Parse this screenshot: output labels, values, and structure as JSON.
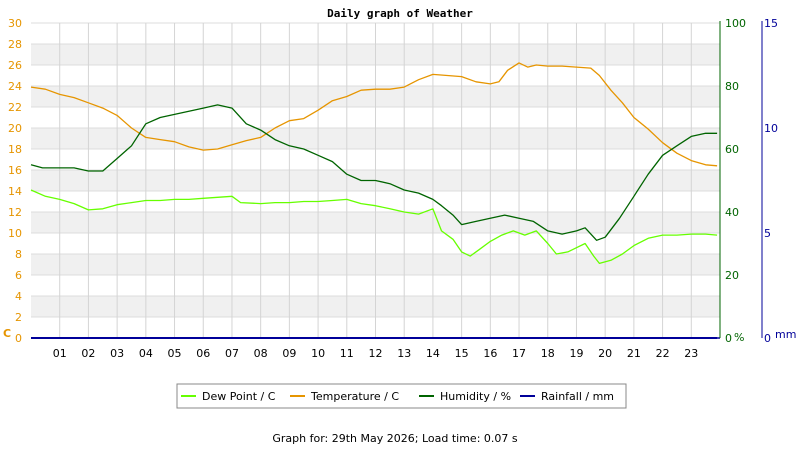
{
  "chart_data": {
    "type": "line",
    "title": "Daily graph of Weather",
    "x_ticks": [
      "01",
      "02",
      "03",
      "04",
      "05",
      "06",
      "07",
      "08",
      "09",
      "10",
      "11",
      "12",
      "13",
      "14",
      "15",
      "16",
      "17",
      "18",
      "19",
      "20",
      "21",
      "22",
      "23"
    ],
    "x_range": [
      0,
      24
    ],
    "axes": {
      "left": {
        "unit": "C",
        "range": [
          0,
          30
        ],
        "ticks": [
          0,
          2,
          4,
          6,
          8,
          10,
          12,
          14,
          16,
          18,
          20,
          22,
          24,
          26,
          28,
          30
        ],
        "color": "#e69500"
      },
      "humidity": {
        "unit": "%",
        "range": [
          0,
          100
        ],
        "ticks": [
          0,
          20,
          40,
          60,
          80,
          100
        ],
        "color": "#006400"
      },
      "rain": {
        "unit": "mm",
        "range": [
          0,
          15
        ],
        "ticks": [
          0,
          5,
          10,
          15
        ],
        "color": "#000099"
      }
    },
    "grid": true,
    "legend_position": "bottom",
    "series": [
      {
        "name": "Dew Point / C",
        "axis": "left",
        "color": "#66ff00",
        "points": [
          [
            0,
            14.1
          ],
          [
            0.5,
            13.5
          ],
          [
            1,
            13.2
          ],
          [
            1.5,
            12.8
          ],
          [
            2,
            12.2
          ],
          [
            2.5,
            12.3
          ],
          [
            3,
            12.7
          ],
          [
            3.5,
            12.9
          ],
          [
            4,
            13.1
          ],
          [
            4.5,
            13.1
          ],
          [
            5,
            13.2
          ],
          [
            5.5,
            13.2
          ],
          [
            6,
            13.3
          ],
          [
            6.5,
            13.4
          ],
          [
            7,
            13.5
          ],
          [
            7.3,
            12.9
          ],
          [
            8,
            12.8
          ],
          [
            8.5,
            12.9
          ],
          [
            9,
            12.9
          ],
          [
            9.5,
            13.0
          ],
          [
            10,
            13.0
          ],
          [
            10.5,
            13.1
          ],
          [
            11,
            13.2
          ],
          [
            11.5,
            12.8
          ],
          [
            12,
            12.6
          ],
          [
            12.5,
            12.3
          ],
          [
            13,
            12.0
          ],
          [
            13.5,
            11.8
          ],
          [
            14,
            12.3
          ],
          [
            14.3,
            10.2
          ],
          [
            14.7,
            9.4
          ],
          [
            15,
            8.2
          ],
          [
            15.3,
            7.8
          ],
          [
            15.6,
            8.4
          ],
          [
            16,
            9.2
          ],
          [
            16.4,
            9.8
          ],
          [
            16.8,
            10.2
          ],
          [
            17.2,
            9.8
          ],
          [
            17.6,
            10.2
          ],
          [
            18,
            9.0
          ],
          [
            18.3,
            8.0
          ],
          [
            18.7,
            8.2
          ],
          [
            19,
            8.6
          ],
          [
            19.3,
            9.0
          ],
          [
            19.6,
            7.8
          ],
          [
            19.8,
            7.1
          ],
          [
            20.2,
            7.4
          ],
          [
            20.6,
            8.0
          ],
          [
            21,
            8.8
          ],
          [
            21.5,
            9.5
          ],
          [
            22,
            9.8
          ],
          [
            22.5,
            9.8
          ],
          [
            23,
            9.9
          ],
          [
            23.5,
            9.9
          ],
          [
            23.9,
            9.8
          ]
        ]
      },
      {
        "name": "Temperature / C",
        "axis": "left",
        "color": "#e69500",
        "points": [
          [
            0,
            23.9
          ],
          [
            0.5,
            23.7
          ],
          [
            1,
            23.2
          ],
          [
            1.5,
            22.9
          ],
          [
            2,
            22.4
          ],
          [
            2.5,
            21.9
          ],
          [
            3,
            21.2
          ],
          [
            3.5,
            20.0
          ],
          [
            4,
            19.1
          ],
          [
            4.5,
            18.9
          ],
          [
            5,
            18.7
          ],
          [
            5.5,
            18.2
          ],
          [
            6,
            17.9
          ],
          [
            6.5,
            18.0
          ],
          [
            7,
            18.4
          ],
          [
            7.5,
            18.8
          ],
          [
            8,
            19.1
          ],
          [
            8.5,
            20.0
          ],
          [
            9,
            20.7
          ],
          [
            9.5,
            20.9
          ],
          [
            10,
            21.7
          ],
          [
            10.5,
            22.6
          ],
          [
            11,
            23.0
          ],
          [
            11.5,
            23.6
          ],
          [
            12,
            23.7
          ],
          [
            12.5,
            23.7
          ],
          [
            13,
            23.9
          ],
          [
            13.5,
            24.6
          ],
          [
            14,
            25.1
          ],
          [
            14.5,
            25.0
          ],
          [
            15,
            24.9
          ],
          [
            15.5,
            24.4
          ],
          [
            16,
            24.2
          ],
          [
            16.3,
            24.4
          ],
          [
            16.6,
            25.5
          ],
          [
            17,
            26.2
          ],
          [
            17.3,
            25.8
          ],
          [
            17.6,
            26.0
          ],
          [
            18,
            25.9
          ],
          [
            18.5,
            25.9
          ],
          [
            19,
            25.8
          ],
          [
            19.5,
            25.7
          ],
          [
            19.8,
            25.0
          ],
          [
            20.2,
            23.6
          ],
          [
            20.6,
            22.4
          ],
          [
            21,
            21.0
          ],
          [
            21.5,
            19.9
          ],
          [
            22,
            18.6
          ],
          [
            22.5,
            17.6
          ],
          [
            23,
            16.9
          ],
          [
            23.5,
            16.5
          ],
          [
            23.9,
            16.4
          ]
        ]
      },
      {
        "name": "Humidity / %",
        "axis": "humidity",
        "color": "#006400",
        "points": [
          [
            0,
            55
          ],
          [
            0.4,
            54
          ],
          [
            1,
            54
          ],
          [
            1.5,
            54
          ],
          [
            2,
            53
          ],
          [
            2.5,
            53
          ],
          [
            3,
            57
          ],
          [
            3.5,
            61
          ],
          [
            4,
            68
          ],
          [
            4.5,
            70
          ],
          [
            5,
            71
          ],
          [
            5.5,
            72
          ],
          [
            6,
            73
          ],
          [
            6.5,
            74
          ],
          [
            7,
            73
          ],
          [
            7.5,
            68
          ],
          [
            8,
            66
          ],
          [
            8.5,
            63
          ],
          [
            9,
            61
          ],
          [
            9.5,
            60
          ],
          [
            10,
            58
          ],
          [
            10.5,
            56
          ],
          [
            11,
            52
          ],
          [
            11.5,
            50
          ],
          [
            12,
            50
          ],
          [
            12.5,
            49
          ],
          [
            13,
            47
          ],
          [
            13.5,
            46
          ],
          [
            14,
            44
          ],
          [
            14.3,
            42
          ],
          [
            14.7,
            39
          ],
          [
            15,
            36
          ],
          [
            15.5,
            37
          ],
          [
            16,
            38
          ],
          [
            16.5,
            39
          ],
          [
            17,
            38
          ],
          [
            17.5,
            37
          ],
          [
            18,
            34
          ],
          [
            18.5,
            33
          ],
          [
            19,
            34
          ],
          [
            19.3,
            35
          ],
          [
            19.7,
            31
          ],
          [
            20,
            32
          ],
          [
            20.5,
            38
          ],
          [
            21,
            45
          ],
          [
            21.5,
            52
          ],
          [
            22,
            58
          ],
          [
            22.5,
            61
          ],
          [
            23,
            64
          ],
          [
            23.5,
            65
          ],
          [
            23.9,
            65
          ]
        ]
      },
      {
        "name": "Rainfall / mm",
        "axis": "rain",
        "color": "#000099",
        "points": [
          [
            0,
            0
          ],
          [
            23.9,
            0
          ]
        ]
      }
    ]
  },
  "footer": "Graph for: 29th May 2026; Load time: 0.07 s"
}
